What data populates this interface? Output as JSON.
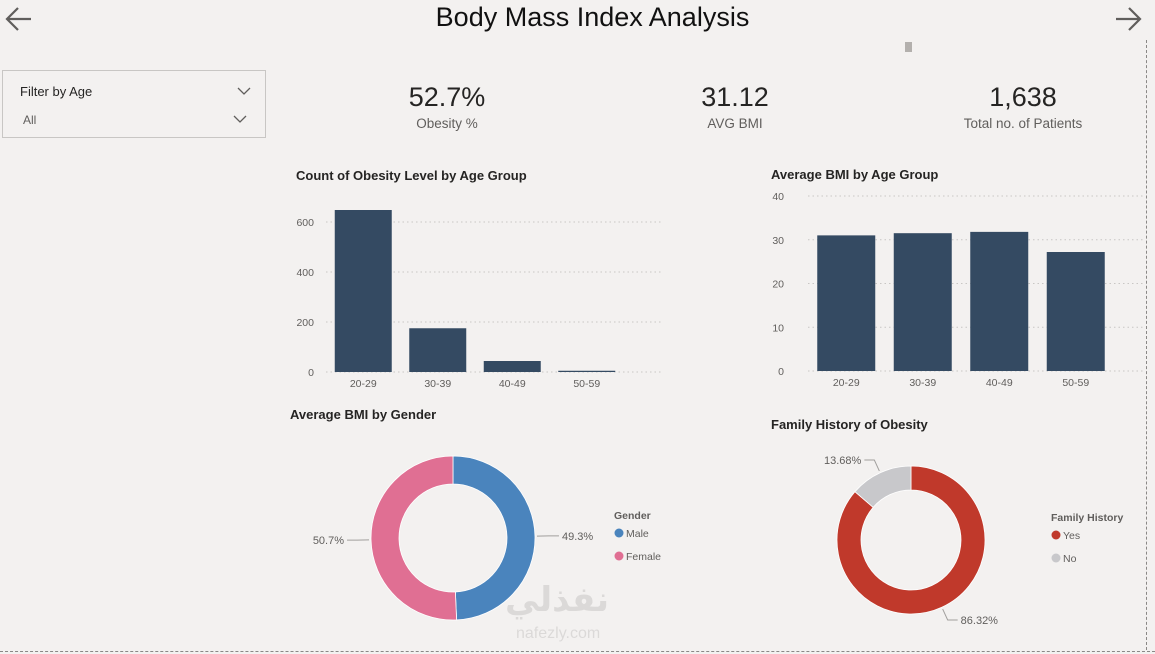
{
  "header": {
    "title": "Body Mass Index Analysis",
    "back_icon": "arrow-left-icon",
    "forward_icon": "arrow-right-icon"
  },
  "filter": {
    "label": "Filter by Age",
    "value": "All"
  },
  "kpis": [
    {
      "value": "52.7%",
      "caption": "Obesity %"
    },
    {
      "value": "31.12",
      "caption": "AVG BMI"
    },
    {
      "value": "1,638",
      "caption": "Total no. of Patients"
    }
  ],
  "watermark": {
    "arabic": "نفذلي",
    "latin": "nafezly.com"
  },
  "colors": {
    "bar": "#344a62",
    "male": "#4a84bd",
    "female": "#e06f93",
    "yes": "#c0392b",
    "no": "#c8c8cb"
  },
  "chart_data": [
    {
      "type": "bar",
      "title": "Count of Obesity Level by Age Group",
      "categories": [
        "20-29",
        "30-39",
        "40-49",
        "50-59"
      ],
      "values": [
        648,
        175,
        44,
        5
      ],
      "yticks": [
        "0",
        "200",
        "400",
        "600"
      ],
      "ylim": [
        0,
        700
      ]
    },
    {
      "type": "bar",
      "title": "Average BMI by Age Group",
      "categories": [
        "20-29",
        "30-39",
        "40-49",
        "50-59"
      ],
      "values": [
        31.0,
        31.5,
        31.8,
        27.2
      ],
      "yticks": [
        "0",
        "10",
        "20",
        "30",
        "40"
      ],
      "ylim": [
        0,
        40
      ]
    },
    {
      "type": "pie",
      "title": "Average BMI by Gender",
      "legend_title": "Gender",
      "slices": [
        {
          "name": "Male",
          "value": 49.3,
          "label": "49.3%"
        },
        {
          "name": "Female",
          "value": 50.7,
          "label": "50.7%"
        }
      ]
    },
    {
      "type": "pie",
      "title": "Family History of Obesity",
      "legend_title": "Family History",
      "slices": [
        {
          "name": "Yes",
          "value": 86.32,
          "label": "86.32%"
        },
        {
          "name": "No",
          "value": 13.68,
          "label": "13.68%"
        }
      ]
    }
  ]
}
